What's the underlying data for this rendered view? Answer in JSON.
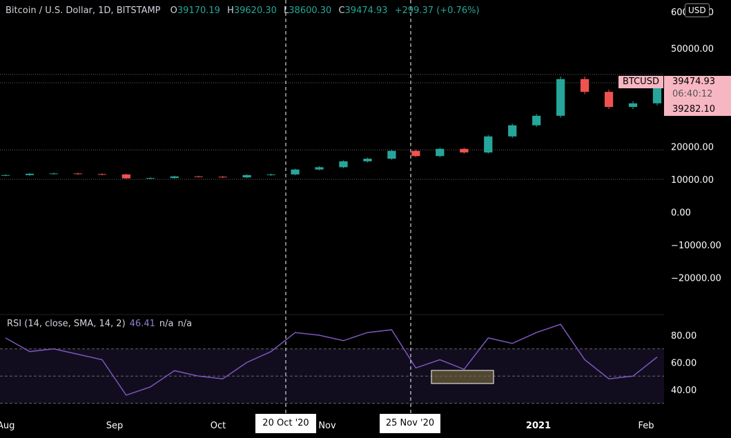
{
  "header": {
    "symbol_title": "Bitcoin / U.S. Dollar, 1D, BITSTAMP",
    "ohlc": [
      {
        "label": "O",
        "value": "39170.19"
      },
      {
        "label": "H",
        "value": "39620.30"
      },
      {
        "label": "L",
        "value": "38600.30"
      },
      {
        "label": "C",
        "value": "39474.93"
      }
    ],
    "change": "+299.37 (+0.76%)"
  },
  "currency": "USD",
  "price_axis": {
    "ticks": [
      {
        "value": 60000,
        "label": "60000.00"
      },
      {
        "value": 50000,
        "label": "50000.00"
      },
      {
        "value": 20000,
        "label": "20000.00"
      },
      {
        "value": 10000,
        "label": "10000.00"
      },
      {
        "value": 0,
        "label": "0.00"
      },
      {
        "value": -10000,
        "label": "−10000.00"
      },
      {
        "value": -20000,
        "label": "−20000.00"
      }
    ]
  },
  "price_tags": {
    "symbol": "BTCUSD",
    "last_price": "39474.93",
    "countdown": "06:40:12",
    "second_price": "39282.10"
  },
  "rsi": {
    "legend_label": "RSI (14, close, SMA, 14, 2)",
    "value": "46.41",
    "na1": "n/a",
    "na2": "n/a",
    "ticks": [
      {
        "value": 80,
        "label": "80.00"
      },
      {
        "value": 60,
        "label": "60.00"
      },
      {
        "value": 40,
        "label": "40.00"
      }
    ]
  },
  "time_axis": {
    "labels": [
      "Aug",
      "Sep",
      "Oct",
      "Nov",
      "2021",
      "Feb"
    ]
  },
  "crosshairs": {
    "first_date": "20 Oct '20",
    "second_date": "25 Nov '20"
  },
  "colors": {
    "up": "#26a69a",
    "down": "#ef5350",
    "rsi_line": "#7e57c2",
    "rsi_band": "#120d1e",
    "price_tag": "#f7b7c2",
    "background": "#000000"
  },
  "chart_data": {
    "type": "candlestick",
    "series": [
      {
        "name": "BTCUSD",
        "x": [
          "2020-07-31",
          "2020-08-07",
          "2020-08-14",
          "2020-08-21",
          "2020-08-28",
          "2020-09-04",
          "2020-09-11",
          "2020-09-18",
          "2020-09-25",
          "2020-10-02",
          "2020-10-09",
          "2020-10-16",
          "2020-10-23",
          "2020-10-30",
          "2020-11-06",
          "2020-11-13",
          "2020-11-20",
          "2020-11-27",
          "2020-12-04",
          "2020-12-11",
          "2020-12-18",
          "2020-12-25",
          "2021-01-01",
          "2021-01-08",
          "2021-01-15",
          "2021-01-22",
          "2021-01-29",
          "2021-02-05"
        ],
        "close": [
          11300,
          11700,
          11800,
          11600,
          11500,
          10300,
          10400,
          10900,
          10800,
          10600,
          11300,
          11500,
          13000,
          13700,
          15500,
          16300,
          18700,
          17100,
          19300,
          18200,
          23100,
          26500,
          29400,
          40600,
          36700,
          32100,
          33200,
          39474.93
        ]
      },
      {
        "name": "RSI",
        "x": [
          "2020-07-31",
          "2020-08-07",
          "2020-08-14",
          "2020-08-21",
          "2020-08-28",
          "2020-09-04",
          "2020-09-11",
          "2020-09-18",
          "2020-09-25",
          "2020-10-02",
          "2020-10-09",
          "2020-10-16",
          "2020-10-23",
          "2020-10-30",
          "2020-11-06",
          "2020-11-13",
          "2020-11-20",
          "2020-11-27",
          "2020-12-04",
          "2020-12-11",
          "2020-12-18",
          "2020-12-25",
          "2021-01-01",
          "2021-01-08",
          "2021-01-15",
          "2021-01-22",
          "2021-01-29",
          "2021-02-05"
        ],
        "values": [
          78,
          68,
          70,
          66,
          62,
          36,
          42,
          54,
          50,
          48,
          60,
          68,
          82,
          80,
          76,
          82,
          84,
          56,
          62,
          55,
          78,
          74,
          82,
          88,
          62,
          48,
          50,
          64
        ]
      }
    ],
    "price_ylim": [
      -30000,
      60000
    ],
    "rsi_ylim": [
      30,
      90
    ],
    "rsi_bands": [
      70,
      50,
      30
    ]
  }
}
